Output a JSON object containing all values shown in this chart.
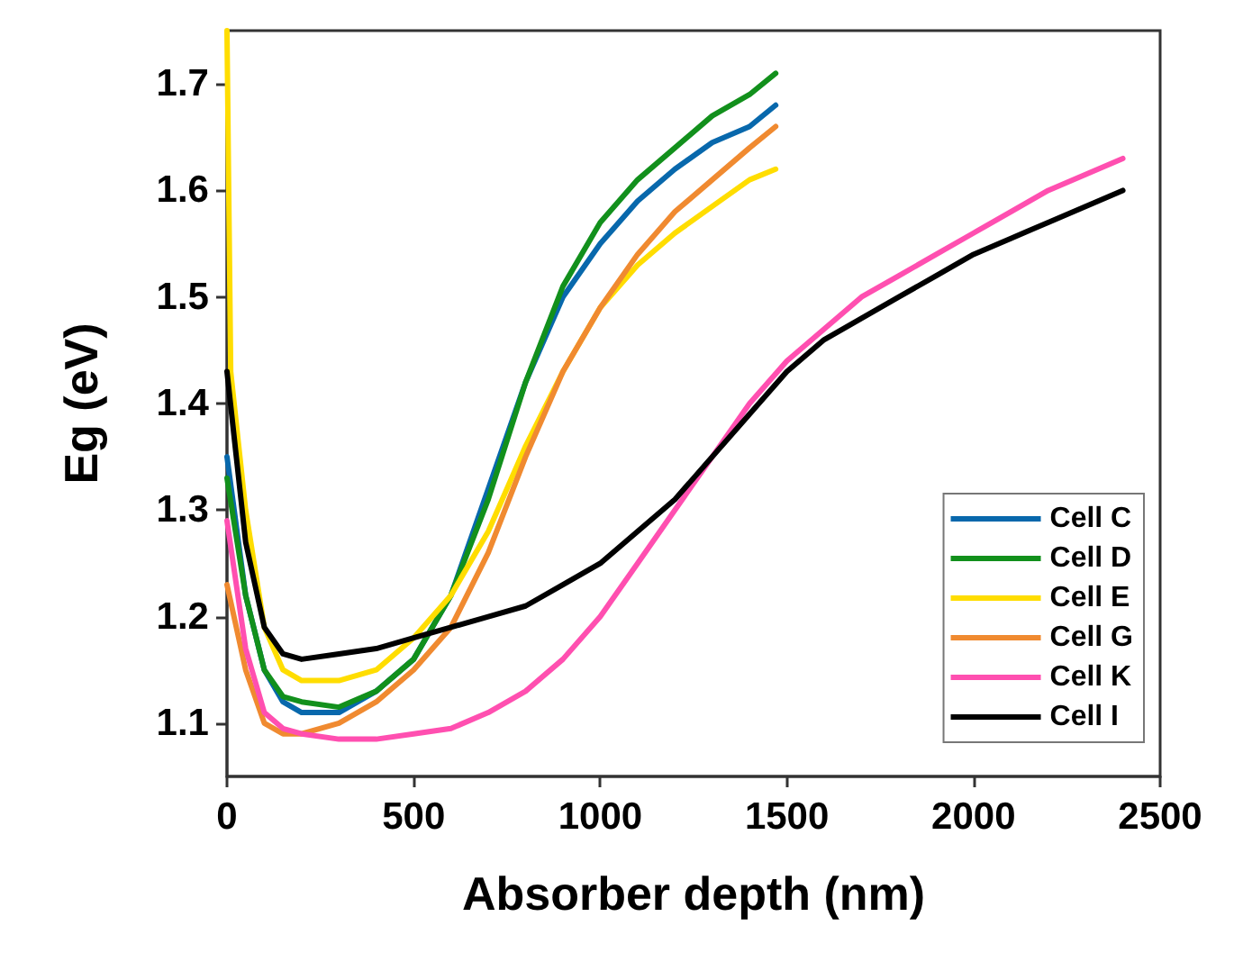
{
  "chart_data": {
    "type": "line",
    "xlabel": "Absorber depth (nm)",
    "ylabel": "Eg (eV)",
    "xlim": [
      0,
      2500
    ],
    "xticks": [
      0,
      500,
      1000,
      1500,
      2000,
      2500
    ],
    "ylim": [
      1.05,
      1.75
    ],
    "yticks": [
      1.1,
      1.2,
      1.3,
      1.4,
      1.5,
      1.6,
      1.7
    ],
    "grid": false,
    "legend": "bottom right",
    "marker": "none",
    "line_style": "solid",
    "series": [
      {
        "name": "Cell C",
        "color": "#0868ac",
        "x": [
          0,
          50,
          100,
          150,
          200,
          300,
          400,
          500,
          600,
          700,
          800,
          900,
          1000,
          1100,
          1200,
          1300,
          1400,
          1470
        ],
        "values": [
          1.35,
          1.22,
          1.15,
          1.12,
          1.11,
          1.11,
          1.13,
          1.16,
          1.22,
          1.32,
          1.42,
          1.5,
          1.55,
          1.59,
          1.62,
          1.645,
          1.66,
          1.68
        ]
      },
      {
        "name": "Cell D",
        "color": "#12901c",
        "x": [
          0,
          50,
          100,
          150,
          200,
          300,
          400,
          500,
          600,
          700,
          800,
          900,
          1000,
          1100,
          1200,
          1300,
          1400,
          1470
        ],
        "values": [
          1.33,
          1.22,
          1.15,
          1.125,
          1.12,
          1.115,
          1.13,
          1.16,
          1.22,
          1.31,
          1.42,
          1.51,
          1.57,
          1.61,
          1.64,
          1.67,
          1.69,
          1.71
        ]
      },
      {
        "name": "Cell E",
        "color": "#ffdd00",
        "x": [
          0,
          10,
          50,
          100,
          150,
          200,
          300,
          400,
          500,
          600,
          700,
          800,
          900,
          1000,
          1100,
          1200,
          1300,
          1400,
          1470
        ],
        "values": [
          1.75,
          1.43,
          1.3,
          1.19,
          1.15,
          1.14,
          1.14,
          1.15,
          1.18,
          1.22,
          1.28,
          1.36,
          1.43,
          1.49,
          1.53,
          1.56,
          1.585,
          1.61,
          1.62
        ]
      },
      {
        "name": "Cell G",
        "color": "#f08a30",
        "x": [
          0,
          50,
          100,
          150,
          200,
          300,
          400,
          500,
          600,
          700,
          800,
          900,
          1000,
          1100,
          1200,
          1300,
          1400,
          1470
        ],
        "values": [
          1.23,
          1.15,
          1.1,
          1.09,
          1.09,
          1.1,
          1.12,
          1.15,
          1.19,
          1.26,
          1.35,
          1.43,
          1.49,
          1.54,
          1.58,
          1.61,
          1.64,
          1.66
        ]
      },
      {
        "name": "Cell K",
        "color": "#ff4fb0",
        "x": [
          0,
          50,
          100,
          150,
          200,
          300,
          400,
          500,
          600,
          700,
          800,
          900,
          1000,
          1100,
          1200,
          1300,
          1400,
          1500,
          1600,
          1700,
          1800,
          1900,
          2000,
          2100,
          2200,
          2300,
          2400
        ],
        "values": [
          1.29,
          1.17,
          1.11,
          1.095,
          1.09,
          1.085,
          1.085,
          1.09,
          1.095,
          1.11,
          1.13,
          1.16,
          1.2,
          1.25,
          1.3,
          1.35,
          1.4,
          1.44,
          1.47,
          1.5,
          1.52,
          1.54,
          1.56,
          1.58,
          1.6,
          1.615,
          1.63
        ]
      },
      {
        "name": "Cell I",
        "color": "#000000",
        "x": [
          0,
          50,
          100,
          150,
          200,
          300,
          400,
          500,
          600,
          700,
          800,
          900,
          1000,
          1100,
          1200,
          1300,
          1400,
          1500,
          1600,
          1700,
          1800,
          1900,
          2000,
          2100,
          2200,
          2300,
          2400
        ],
        "values": [
          1.43,
          1.27,
          1.19,
          1.165,
          1.16,
          1.165,
          1.17,
          1.18,
          1.19,
          1.2,
          1.21,
          1.23,
          1.25,
          1.28,
          1.31,
          1.35,
          1.39,
          1.43,
          1.46,
          1.48,
          1.5,
          1.52,
          1.54,
          1.555,
          1.57,
          1.585,
          1.6
        ]
      }
    ]
  }
}
